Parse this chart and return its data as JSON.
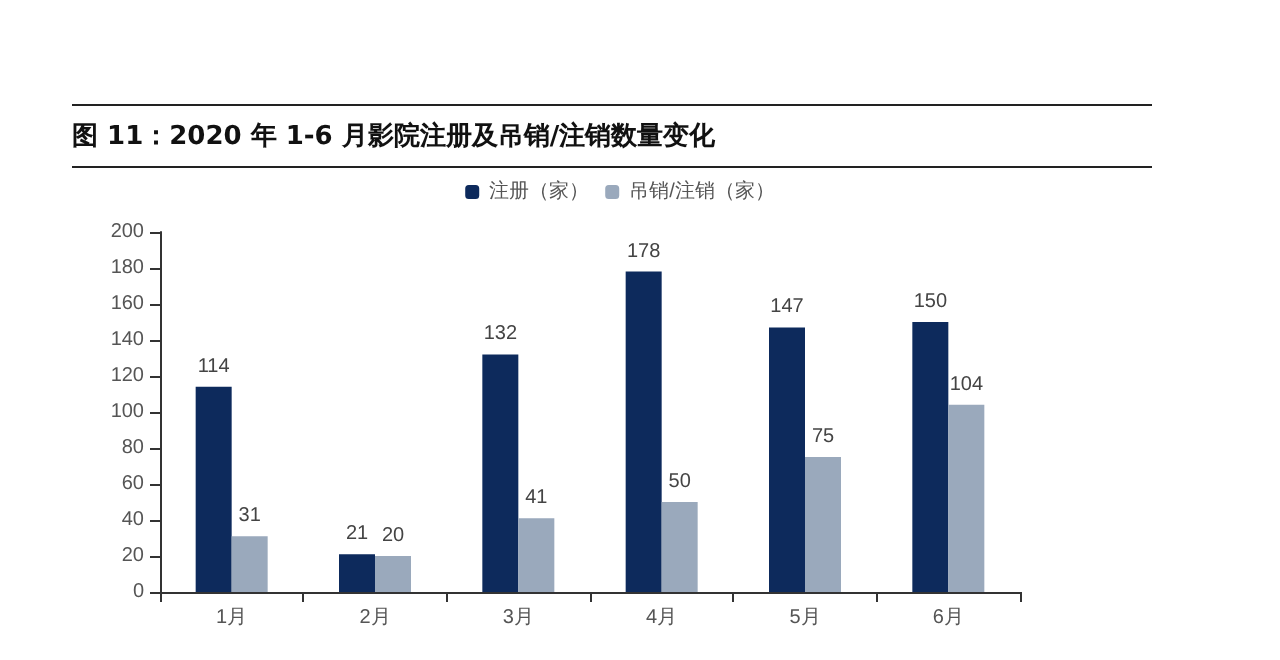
{
  "chart_data": {
    "type": "bar",
    "title": "图 11：2020 年 1-6 月影院注册及吊销/注销数量变化",
    "categories": [
      "1月",
      "2月",
      "3月",
      "4月",
      "5月",
      "6月"
    ],
    "series": [
      {
        "name": "注册（家）",
        "color": "#0d2a5c",
        "values": [
          114,
          21,
          132,
          178,
          147,
          150
        ]
      },
      {
        "name": "吊销/注销（家）",
        "color": "#9aa9bc",
        "values": [
          31,
          20,
          41,
          50,
          75,
          104
        ]
      }
    ],
    "ylim": [
      0,
      200
    ],
    "yticks": [
      0,
      20,
      40,
      60,
      80,
      100,
      120,
      140,
      160,
      180,
      200
    ],
    "grid": false,
    "legend": "top",
    "data_labels": true
  }
}
